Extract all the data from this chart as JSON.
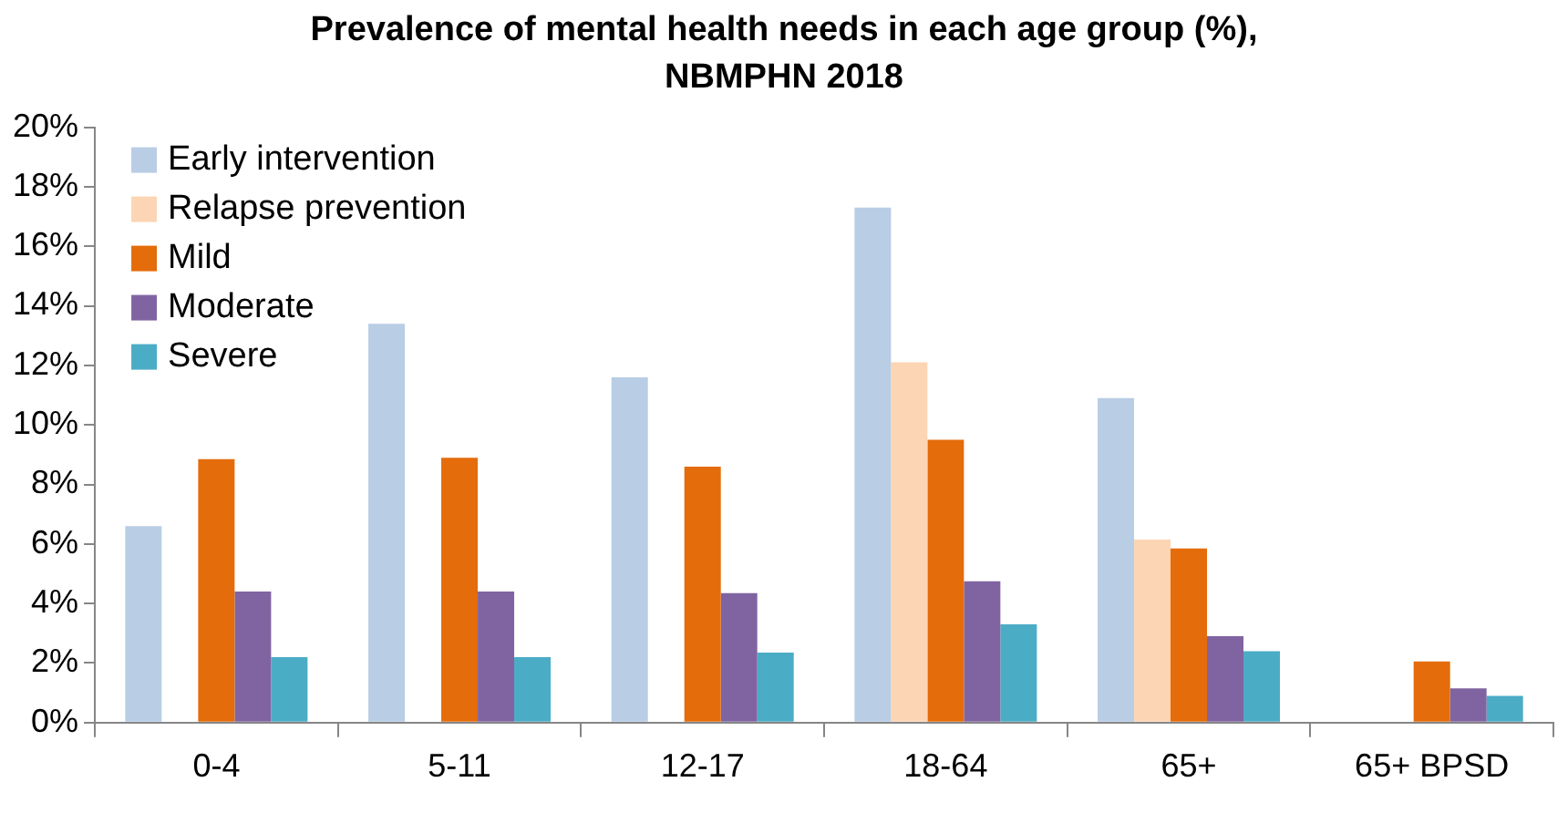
{
  "chart_data": {
    "type": "bar",
    "title": "Prevalence of mental health needs in each age group (%), NBMPHN 2018",
    "categories": [
      "0-4",
      "5-11",
      "12-17",
      "18-64",
      "65+",
      "65+ BPSD"
    ],
    "series": [
      {
        "name": "Early intervention",
        "color": "#b9cde5",
        "values": [
          6.6,
          13.4,
          11.6,
          17.3,
          10.9,
          null
        ]
      },
      {
        "name": "Relapse prevention",
        "color": "#fcd5b5",
        "values": [
          null,
          null,
          null,
          12.1,
          6.15,
          null
        ]
      },
      {
        "name": "Mild",
        "color": "#e46c0a",
        "values": [
          8.85,
          8.9,
          8.6,
          9.5,
          5.85,
          2.05
        ]
      },
      {
        "name": "Moderate",
        "color": "#8064a2",
        "values": [
          4.4,
          4.4,
          4.35,
          4.75,
          2.9,
          1.15
        ]
      },
      {
        "name": "Severe",
        "color": "#4bacc6",
        "values": [
          2.2,
          2.2,
          2.35,
          3.3,
          2.4,
          0.9
        ]
      }
    ],
    "ylim": [
      0,
      20
    ],
    "yticks": [
      {
        "value": 0,
        "label": "0%"
      },
      {
        "value": 2,
        "label": "2%"
      },
      {
        "value": 4,
        "label": "4%"
      },
      {
        "value": 6,
        "label": "6%"
      },
      {
        "value": 8,
        "label": "8%"
      },
      {
        "value": 10,
        "label": "10%"
      },
      {
        "value": 12,
        "label": "12%"
      },
      {
        "value": 14,
        "label": "14%"
      },
      {
        "value": 16,
        "label": "16%"
      },
      {
        "value": 18,
        "label": "18%"
      },
      {
        "value": 20,
        "label": "20%"
      }
    ],
    "grid": false,
    "legend": "top left"
  }
}
